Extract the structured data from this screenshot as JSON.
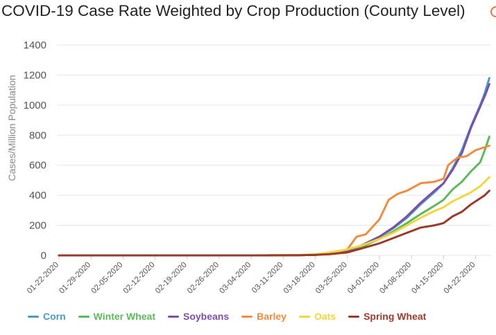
{
  "chart_data": {
    "type": "line",
    "title": "COVID-19 Case Rate Weighted by Crop Production (County Level)",
    "xlabel": "",
    "ylabel": "Cases/Million Population",
    "ylim": [
      0,
      1400
    ],
    "yticks": [
      0,
      200,
      400,
      600,
      800,
      1000,
      1200,
      1400
    ],
    "xticks": [
      "01-22-2020",
      "01-29-2020",
      "02-05-2020",
      "02-12-2020",
      "02-19-2020",
      "02-26-2020",
      "03-04-2020",
      "03-11-2020",
      "03-18-2020",
      "03-25-2020",
      "04-01-2020",
      "04-08-2020",
      "04-15-2020",
      "04-22-2020"
    ],
    "x_range": [
      "01-22-2020",
      "04-24-2020"
    ],
    "grid": "horizontal",
    "legend_position": "bottom",
    "series": [
      {
        "name": "Corn",
        "color": "#4a9bbf",
        "points": [
          [
            "01-22-2020",
            0
          ],
          [
            "03-04-2020",
            0
          ],
          [
            "03-14-2020",
            1
          ],
          [
            "03-18-2020",
            3
          ],
          [
            "03-21-2020",
            10
          ],
          [
            "03-25-2020",
            30
          ],
          [
            "03-28-2020",
            65
          ],
          [
            "04-01-2020",
            125
          ],
          [
            "04-04-2020",
            180
          ],
          [
            "04-07-2020",
            250
          ],
          [
            "04-10-2020",
            340
          ],
          [
            "04-13-2020",
            420
          ],
          [
            "04-15-2020",
            480
          ],
          [
            "04-17-2020",
            580
          ],
          [
            "04-19-2020",
            700
          ],
          [
            "04-21-2020",
            860
          ],
          [
            "04-23-2020",
            1000
          ],
          [
            "04-24-2020",
            1080
          ],
          [
            "04-25-2020",
            1180
          ]
        ]
      },
      {
        "name": "Winter Wheat",
        "color": "#5fb85c",
        "points": [
          [
            "01-22-2020",
            0
          ],
          [
            "03-04-2020",
            0
          ],
          [
            "03-14-2020",
            1
          ],
          [
            "03-18-2020",
            3
          ],
          [
            "03-21-2020",
            10
          ],
          [
            "03-25-2020",
            28
          ],
          [
            "03-28-2020",
            55
          ],
          [
            "04-01-2020",
            110
          ],
          [
            "04-04-2020",
            160
          ],
          [
            "04-07-2020",
            215
          ],
          [
            "04-10-2020",
            275
          ],
          [
            "04-13-2020",
            330
          ],
          [
            "04-15-2020",
            370
          ],
          [
            "04-17-2020",
            440
          ],
          [
            "04-19-2020",
            490
          ],
          [
            "04-21-2020",
            560
          ],
          [
            "04-23-2020",
            620
          ],
          [
            "04-24-2020",
            700
          ],
          [
            "04-25-2020",
            790
          ]
        ]
      },
      {
        "name": "Soybeans",
        "color": "#7b4fa8",
        "points": [
          [
            "01-22-2020",
            0
          ],
          [
            "03-04-2020",
            0
          ],
          [
            "03-14-2020",
            1
          ],
          [
            "03-18-2020",
            3
          ],
          [
            "03-21-2020",
            10
          ],
          [
            "03-25-2020",
            30
          ],
          [
            "03-28-2020",
            65
          ],
          [
            "04-01-2020",
            125
          ],
          [
            "04-04-2020",
            185
          ],
          [
            "04-07-2020",
            260
          ],
          [
            "04-10-2020",
            350
          ],
          [
            "04-13-2020",
            430
          ],
          [
            "04-15-2020",
            480
          ],
          [
            "04-17-2020",
            570
          ],
          [
            "04-19-2020",
            680
          ],
          [
            "04-21-2020",
            850
          ],
          [
            "04-23-2020",
            990
          ],
          [
            "04-24-2020",
            1060
          ],
          [
            "04-25-2020",
            1140
          ]
        ]
      },
      {
        "name": "Barley",
        "color": "#ef8c3f",
        "points": [
          [
            "01-22-2020",
            0
          ],
          [
            "03-04-2020",
            0
          ],
          [
            "03-14-2020",
            2
          ],
          [
            "03-18-2020",
            5
          ],
          [
            "03-21-2020",
            12
          ],
          [
            "03-25-2020",
            40
          ],
          [
            "03-27-2020",
            125
          ],
          [
            "03-29-2020",
            140
          ],
          [
            "04-01-2020",
            240
          ],
          [
            "04-03-2020",
            370
          ],
          [
            "04-05-2020",
            410
          ],
          [
            "04-07-2020",
            430
          ],
          [
            "04-10-2020",
            480
          ],
          [
            "04-13-2020",
            490
          ],
          [
            "04-15-2020",
            510
          ],
          [
            "04-16-2020",
            600
          ],
          [
            "04-18-2020",
            650
          ],
          [
            "04-20-2020",
            660
          ],
          [
            "04-22-2020",
            700
          ],
          [
            "04-25-2020",
            730
          ]
        ]
      },
      {
        "name": "Oats",
        "color": "#f0d640",
        "points": [
          [
            "01-22-2020",
            0
          ],
          [
            "03-04-2020",
            0
          ],
          [
            "03-14-2020",
            2
          ],
          [
            "03-18-2020",
            8
          ],
          [
            "03-21-2020",
            20
          ],
          [
            "03-25-2020",
            40
          ],
          [
            "03-28-2020",
            65
          ],
          [
            "04-01-2020",
            110
          ],
          [
            "04-04-2020",
            150
          ],
          [
            "04-07-2020",
            200
          ],
          [
            "04-10-2020",
            250
          ],
          [
            "04-13-2020",
            295
          ],
          [
            "04-15-2020",
            320
          ],
          [
            "04-17-2020",
            360
          ],
          [
            "04-19-2020",
            390
          ],
          [
            "04-21-2020",
            420
          ],
          [
            "04-23-2020",
            460
          ],
          [
            "04-24-2020",
            490
          ],
          [
            "04-25-2020",
            520
          ]
        ]
      },
      {
        "name": "Spring Wheat",
        "color": "#9a3a2a",
        "points": [
          [
            "01-22-2020",
            0
          ],
          [
            "03-04-2020",
            0
          ],
          [
            "03-14-2020",
            1
          ],
          [
            "03-18-2020",
            3
          ],
          [
            "03-21-2020",
            8
          ],
          [
            "03-25-2020",
            20
          ],
          [
            "03-28-2020",
            45
          ],
          [
            "04-01-2020",
            80
          ],
          [
            "04-04-2020",
            115
          ],
          [
            "04-07-2020",
            150
          ],
          [
            "04-10-2020",
            185
          ],
          [
            "04-13-2020",
            200
          ],
          [
            "04-15-2020",
            215
          ],
          [
            "04-17-2020",
            260
          ],
          [
            "04-19-2020",
            290
          ],
          [
            "04-21-2020",
            340
          ],
          [
            "04-23-2020",
            380
          ],
          [
            "04-24-2020",
            400
          ],
          [
            "04-25-2020",
            430
          ]
        ]
      }
    ]
  },
  "title_icon": "circle-icon"
}
